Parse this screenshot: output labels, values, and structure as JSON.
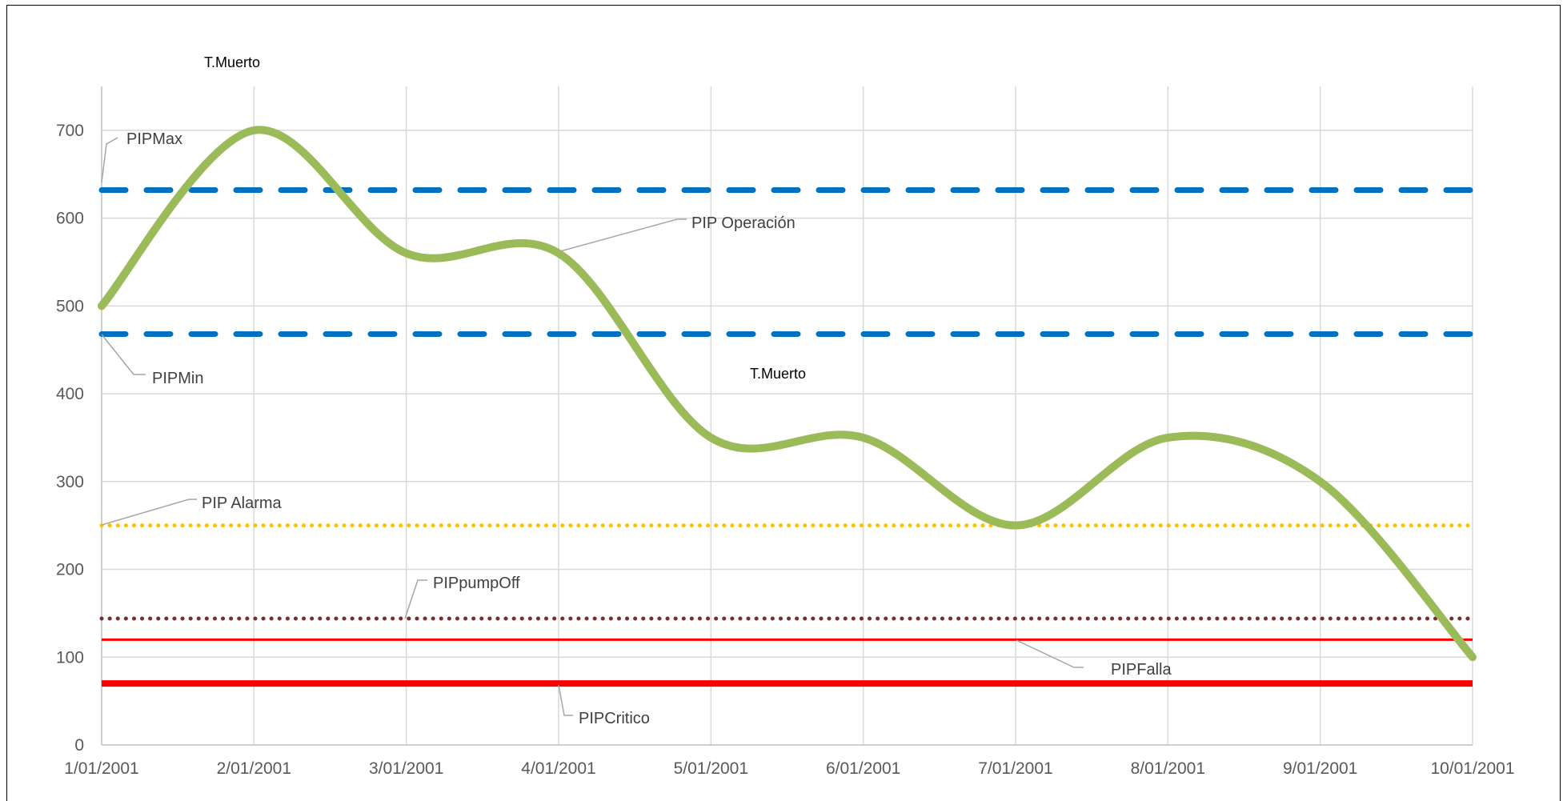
{
  "chart_data": {
    "type": "line",
    "x": [
      "1/01/2001",
      "2/01/2001",
      "3/01/2001",
      "4/01/2001",
      "5/01/2001",
      "6/01/2001",
      "7/01/2001",
      "8/01/2001",
      "9/01/2001",
      "10/01/2001"
    ],
    "ylim": [
      0,
      700
    ],
    "yticks": [
      0,
      100,
      200,
      300,
      400,
      500,
      600,
      700
    ],
    "grid": true,
    "series": [
      {
        "name": "PIP Operación",
        "values": [
          500,
          700,
          560,
          560,
          350,
          350,
          250,
          350,
          300,
          100
        ],
        "color": "#9BBB59",
        "style": "solid-thick"
      },
      {
        "name": "PIPMax",
        "values": [
          632,
          632,
          632,
          632,
          632,
          632,
          632,
          632,
          632,
          632
        ],
        "color": "#0070C0",
        "style": "dashed"
      },
      {
        "name": "PIPMin",
        "values": [
          468,
          468,
          468,
          468,
          468,
          468,
          468,
          468,
          468,
          468
        ],
        "color": "#0070C0",
        "style": "dashed"
      },
      {
        "name": "PIP Alarma",
        "values": [
          250,
          250,
          250,
          250,
          250,
          250,
          250,
          250,
          250,
          250
        ],
        "color": "#FFC000",
        "style": "dotted"
      },
      {
        "name": "PIPpumpOff",
        "values": [
          144,
          144,
          144,
          144,
          144,
          144,
          144,
          144,
          144,
          144
        ],
        "color": "#7B2C2C",
        "style": "dotted"
      },
      {
        "name": "PIPFalla",
        "values": [
          120,
          120,
          120,
          120,
          120,
          120,
          120,
          120,
          120,
          120
        ],
        "color": "#FF0000",
        "style": "solid-thin"
      },
      {
        "name": "PIPCritico",
        "values": [
          70,
          70,
          70,
          70,
          70,
          70,
          70,
          70,
          70,
          70
        ],
        "color": "#FF0000",
        "style": "solid-heavy"
      }
    ],
    "annotations": [
      {
        "text": "T.Muerto"
      },
      {
        "text": "T.Muerto"
      }
    ]
  }
}
